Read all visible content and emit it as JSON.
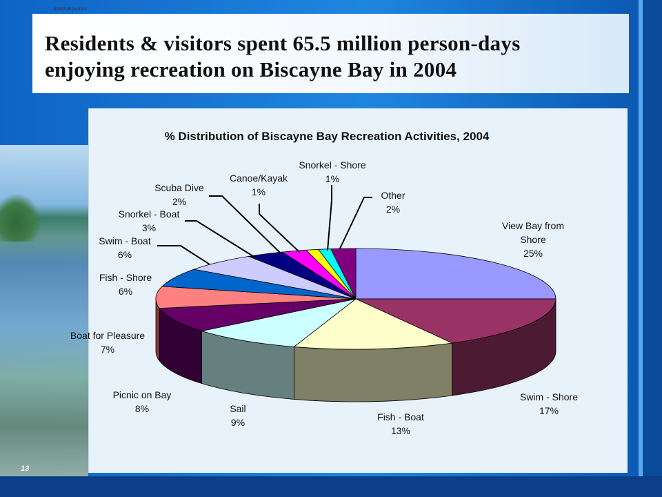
{
  "header": {
    "code": "40507-001w-fn14",
    "title_line1": "Residents & visitors spent 65.5 million person-days",
    "title_line2": "enjoying recreation on Biscayne Bay in 2004"
  },
  "slide_number": "13",
  "chart_data": {
    "type": "pie",
    "title": "% Distribution of Biscayne Bay Recreation Activities, 2004",
    "slices": [
      {
        "label": "View Bay from Shore",
        "percent_label": "25%",
        "value": 25,
        "color": "#9999ff"
      },
      {
        "label": "Swim - Shore",
        "percent_label": "17%",
        "value": 17,
        "color": "#993366"
      },
      {
        "label": "Fish - Boat",
        "percent_label": "13%",
        "value": 13,
        "color": "#ffffcc"
      },
      {
        "label": "Sail",
        "percent_label": "9%",
        "value": 9,
        "color": "#ccffff"
      },
      {
        "label": "Picnic on Bay",
        "percent_label": "8%",
        "value": 8,
        "color": "#660066"
      },
      {
        "label": "Boat for Pleasure",
        "percent_label": "7%",
        "value": 7,
        "color": "#ff8080"
      },
      {
        "label": "Fish - Shore",
        "percent_label": "6%",
        "value": 6,
        "color": "#0066cc"
      },
      {
        "label": "Swim - Boat",
        "percent_label": "6%",
        "value": 6,
        "color": "#ccccff"
      },
      {
        "label": "Snorkel - Boat",
        "percent_label": "3%",
        "value": 3,
        "color": "#000080"
      },
      {
        "label": "Scuba Dive",
        "percent_label": "2%",
        "value": 2,
        "color": "#ff00ff"
      },
      {
        "label": "Canoe/Kayak",
        "percent_label": "1%",
        "value": 1,
        "color": "#ffff00"
      },
      {
        "label": "Snorkel - Shore",
        "percent_label": "1%",
        "value": 1,
        "color": "#00ffff"
      },
      {
        "label": "Other",
        "percent_label": "2%",
        "value": 2,
        "color": "#800080"
      }
    ]
  }
}
